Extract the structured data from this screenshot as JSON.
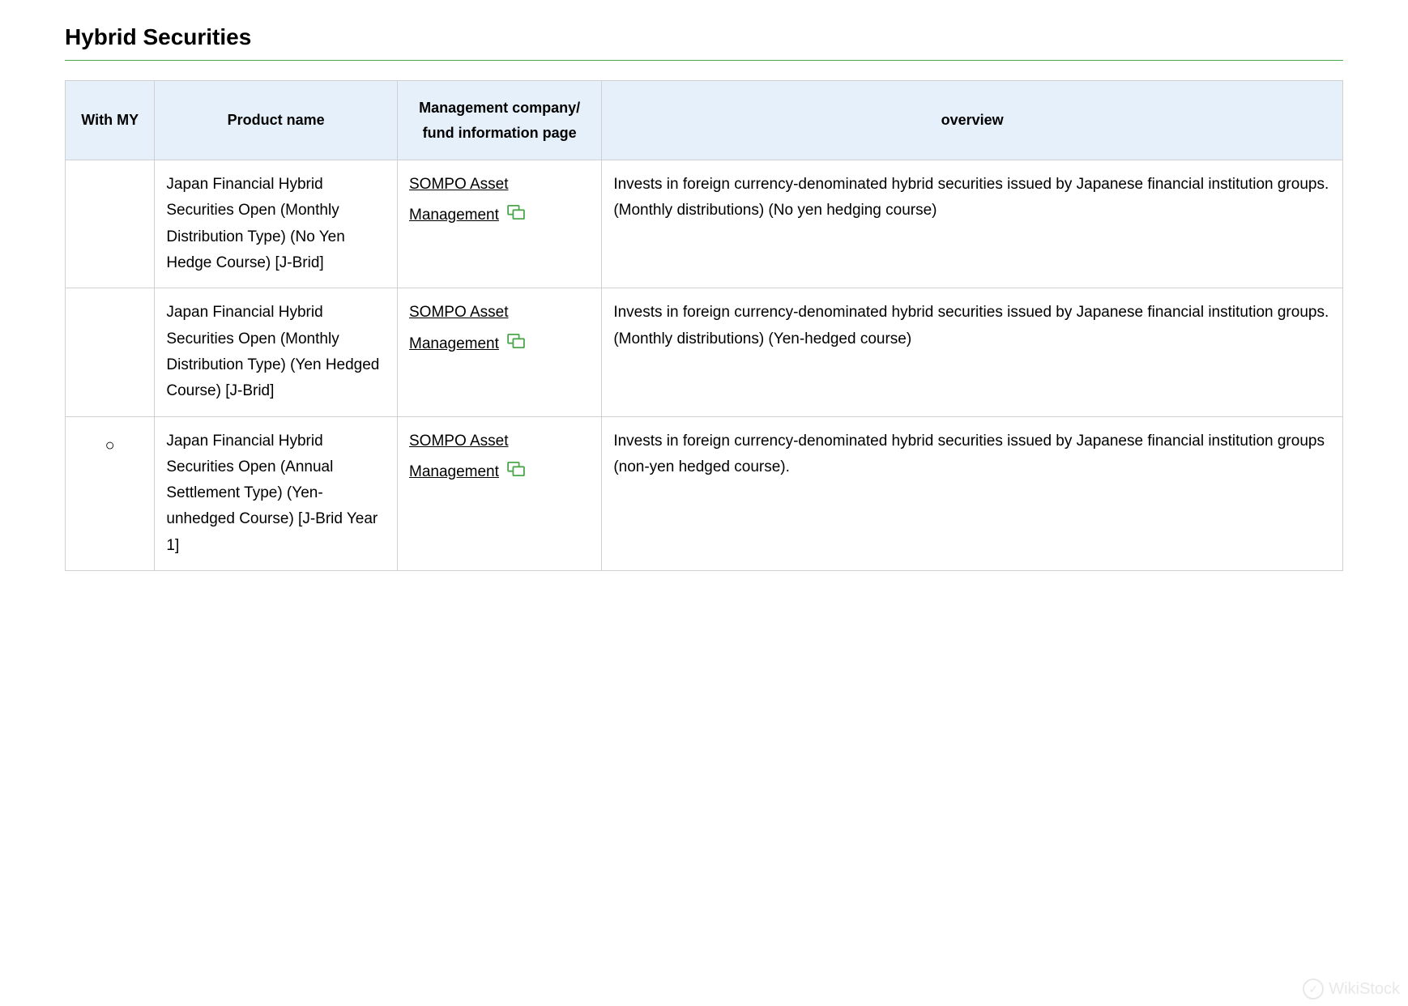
{
  "title": "Hybrid Securities",
  "accent_color": "#4ca64c",
  "header_bg": "#e6f0fa",
  "border_color": "#d0d0d0",
  "link_icon_color": "#4ca64c",
  "watermark_text": "WikiStock",
  "table": {
    "columns": [
      {
        "key": "with_my",
        "label": "With MY",
        "width": "7%"
      },
      {
        "key": "product_name",
        "label": "Product name",
        "width": "19%"
      },
      {
        "key": "management",
        "label": "Management company/\nfund information page",
        "width": "16%"
      },
      {
        "key": "overview",
        "label": "overview",
        "width": "58%"
      }
    ],
    "rows": [
      {
        "with_my": "",
        "product_name": "Japan Financial Hybrid Securities Open (Monthly Distribution Type) (No Yen Hedge Course) [J-Brid]",
        "management_label": "SOMPO Asset Management",
        "overview": "Invests in foreign currency-denominated hybrid securities issued by Japanese financial institution groups. (Monthly distributions) (No yen hedging course)"
      },
      {
        "with_my": "",
        "product_name": "Japan Financial Hybrid Securities Open (Monthly Distribution Type) (Yen Hedged Course) [J-Brid]",
        "management_label": "SOMPO Asset Management",
        "overview": "Invests in foreign currency-denominated hybrid securities issued by Japanese financial institution groups. (Monthly distributions) (Yen-hedged course)"
      },
      {
        "with_my": "○",
        "product_name": "Japan Financial Hybrid Securities Open (Annual Settlement Type) (Yen-unhedged Course) [J-Brid Year 1]",
        "management_label": "SOMPO Asset Management",
        "overview": "Invests in foreign currency-denominated hybrid securities issued by Japanese financial institution groups (non-yen hedged course)."
      }
    ]
  }
}
